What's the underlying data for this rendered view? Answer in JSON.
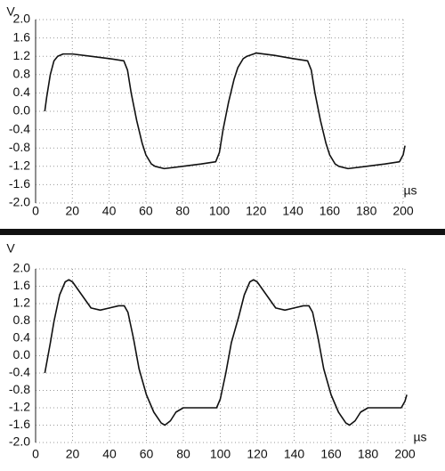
{
  "chart_data": [
    {
      "type": "line",
      "y_label": "V",
      "x_label": "µs",
      "color": "#111111",
      "grid": true,
      "xlim": [
        0,
        200
      ],
      "ylim": [
        -2,
        2
      ],
      "xticks": [
        0,
        20,
        40,
        60,
        80,
        100,
        120,
        140,
        160,
        180,
        200
      ],
      "yticks": [
        {
          "value": 2,
          "label": "2.0"
        },
        1.6,
        1.2,
        0.8,
        0.4,
        {
          "value": 0,
          "label": "0.0"
        },
        -0.4,
        -0.8,
        -1.2,
        -1.6,
        {
          "value": -2,
          "label": "-2.0"
        }
      ],
      "x": [
        5,
        6,
        8,
        10,
        12,
        15,
        20,
        30,
        40,
        48,
        50,
        52,
        55,
        58,
        60,
        63,
        65,
        70,
        80,
        90,
        98,
        100,
        102,
        105,
        108,
        110,
        113,
        115,
        120,
        130,
        140,
        148,
        150,
        152,
        155,
        158,
        160,
        163,
        165,
        170,
        180,
        190,
        198,
        200,
        201
      ],
      "values": [
        0,
        0.3,
        0.8,
        1.1,
        1.2,
        1.25,
        1.25,
        1.2,
        1.15,
        1.1,
        0.9,
        0.4,
        -0.2,
        -0.7,
        -0.95,
        -1.15,
        -1.2,
        -1.25,
        -1.2,
        -1.15,
        -1.1,
        -0.9,
        -0.4,
        0.2,
        0.7,
        0.95,
        1.15,
        1.2,
        1.27,
        1.22,
        1.15,
        1.1,
        0.9,
        0.4,
        -0.2,
        -0.7,
        -0.95,
        -1.15,
        -1.2,
        -1.25,
        -1.2,
        -1.15,
        -1.1,
        -0.95,
        -0.75
      ]
    },
    {
      "type": "line",
      "y_label": "V",
      "x_label": "µs",
      "color": "#111111",
      "grid": true,
      "xlim": [
        0,
        200
      ],
      "ylim": [
        -2,
        2
      ],
      "xticks": [
        0,
        20,
        40,
        60,
        80,
        100,
        120,
        140,
        160,
        180,
        200
      ],
      "yticks": [
        {
          "value": 2,
          "label": "2.0"
        },
        1.6,
        1.2,
        0.8,
        0.4,
        {
          "value": 0,
          "label": "0.0"
        },
        -0.4,
        -0.8,
        -1.2,
        -1.6,
        {
          "value": -2,
          "label": "-2.0"
        }
      ],
      "x": [
        5,
        8,
        10,
        13,
        16,
        18,
        20,
        25,
        30,
        35,
        40,
        45,
        48,
        50,
        53,
        56,
        60,
        64,
        68,
        70,
        73,
        76,
        80,
        90,
        98,
        100,
        103,
        106,
        110,
        113,
        116,
        118,
        120,
        125,
        130,
        135,
        140,
        145,
        148,
        150,
        153,
        156,
        160,
        164,
        168,
        170,
        173,
        176,
        180,
        190,
        198,
        200,
        201
      ],
      "values": [
        -0.4,
        0.3,
        0.8,
        1.4,
        1.7,
        1.75,
        1.7,
        1.4,
        1.1,
        1.05,
        1.1,
        1.15,
        1.15,
        1.0,
        0.4,
        -0.3,
        -0.9,
        -1.3,
        -1.55,
        -1.6,
        -1.5,
        -1.3,
        -1.2,
        -1.2,
        -1.2,
        -1.0,
        -0.4,
        0.3,
        0.9,
        1.4,
        1.7,
        1.75,
        1.7,
        1.4,
        1.1,
        1.05,
        1.1,
        1.15,
        1.15,
        1.0,
        0.4,
        -0.3,
        -0.9,
        -1.3,
        -1.55,
        -1.6,
        -1.5,
        -1.3,
        -1.2,
        -1.2,
        -1.2,
        -1.05,
        -0.9
      ]
    }
  ]
}
